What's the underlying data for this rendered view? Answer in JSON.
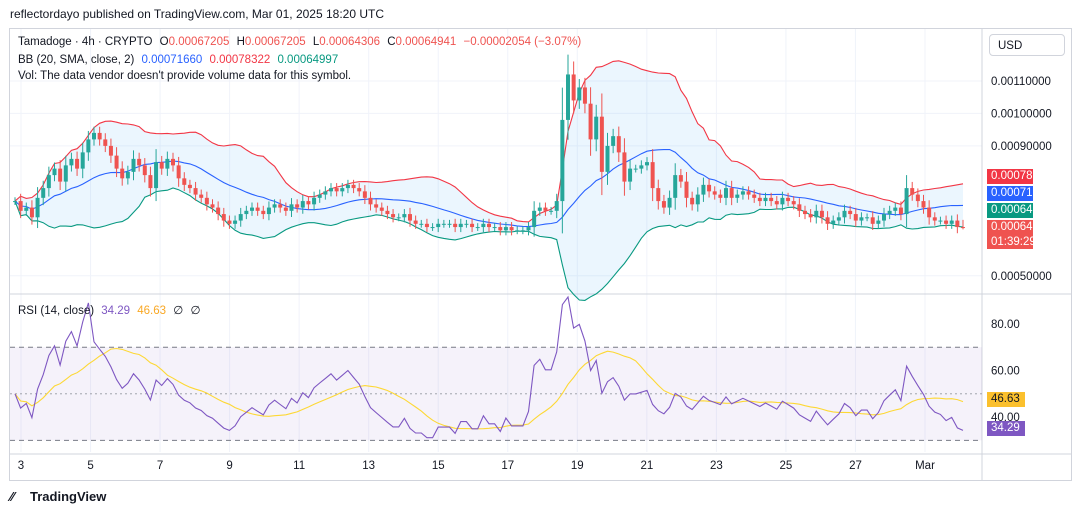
{
  "header": {
    "published": "reflectordayo published on TradingView.com, Mar 01, 2025 18:20 UTC"
  },
  "symbol_legend": {
    "symbol": "Tamadoge · 4h · CRYPTO",
    "o_label": "O",
    "o": "0.00067205",
    "h_label": "H",
    "h": "0.00067205",
    "l_label": "L",
    "l": "0.00064306",
    "c_label": "C",
    "c": "0.00064941",
    "change": "−0.00002054 (−3.07%)"
  },
  "bb_legend": {
    "label": "BB (20, SMA, close, 2)",
    "basis": "0.00071660",
    "upper": "0.00078322",
    "lower": "0.00064997"
  },
  "vol_legend": "Vol: The data vendor doesn't provide volume data for this symbol.",
  "rsi_legend": {
    "label": "RSI (14, close)",
    "rsi": "34.29",
    "ma": "46.63",
    "extra1": "∅",
    "extra2": "∅"
  },
  "currency_button": "USD",
  "price_axis": {
    "ticks": [
      "0.00110000",
      "0.00100000",
      "0.00090000",
      "0.00050000"
    ],
    "badges": {
      "upper": "0.00078322",
      "basis": "0.00071660",
      "lower": "0.00064997",
      "last": "0.00064941",
      "countdown": "01:39:29"
    }
  },
  "rsi_axis": {
    "ticks": [
      "80.00",
      "60.00",
      "40.00"
    ],
    "badge_ma": "46.63",
    "badge_rsi": "34.29"
  },
  "time_axis": [
    "3",
    "5",
    "7",
    "9",
    "11",
    "13",
    "15",
    "17",
    "19",
    "21",
    "23",
    "25",
    "27",
    "Mar"
  ],
  "footer": {
    "brand": "TradingView"
  },
  "colors": {
    "up": "#26a69a",
    "down": "#ef5350",
    "bb_upper": "#f23645",
    "bb_basis": "#2962ff",
    "bb_lower": "#089981",
    "bb_fill": "#2196f3",
    "rsi": "#7e57c2",
    "rsi_ma": "#fdd835"
  },
  "chart_data": [
    {
      "type": "candlestick",
      "title": "Tamadoge · 4h · CRYPTO",
      "ylim": [
        0.00045,
        0.00126
      ],
      "y_ticks": [
        0.0011,
        0.001,
        0.0009,
        0.0005
      ],
      "bb_period": 20,
      "closes": [
        0.00073,
        0.0007,
        0.00071,
        0.00068,
        0.00074,
        0.00077,
        0.00081,
        0.00083,
        0.00079,
        0.00084,
        0.00086,
        0.00083,
        0.00088,
        0.00092,
        0.00094,
        0.00092,
        0.0009,
        0.00087,
        0.00083,
        0.0008,
        0.00082,
        0.00086,
        0.00084,
        0.00081,
        0.00077,
        0.00085,
        0.00083,
        0.00086,
        0.00084,
        0.0008,
        0.00078,
        0.00077,
        0.00075,
        0.00074,
        0.00072,
        0.00071,
        0.00069,
        0.00067,
        0.00066,
        0.00067,
        0.00069,
        0.0007,
        0.00071,
        0.0007,
        0.00069,
        0.00071,
        0.00072,
        0.00071,
        0.0007,
        0.00072,
        0.00071,
        0.00073,
        0.00072,
        0.00074,
        0.00075,
        0.00076,
        0.00077,
        0.00076,
        0.00077,
        0.00078,
        0.00077,
        0.00076,
        0.00074,
        0.00072,
        0.00071,
        0.0007,
        0.00069,
        0.00068,
        0.00068,
        0.00069,
        0.00067,
        0.00066,
        0.00066,
        0.00065,
        0.00065,
        0.00066,
        0.00066,
        0.00066,
        0.00065,
        0.00066,
        0.00066,
        0.00065,
        0.00065,
        0.00066,
        0.00065,
        0.00065,
        0.00064,
        0.00065,
        0.00064,
        0.00064,
        0.00064,
        0.00065,
        0.0007,
        0.00071,
        0.0007,
        0.0007,
        0.00073,
        0.00098,
        0.00112,
        0.00104,
        0.00108,
        0.00103,
        0.00092,
        0.00099,
        0.00082,
        0.0009,
        0.00093,
        0.00088,
        0.00079,
        0.00083,
        0.00083,
        0.00084,
        0.00085,
        0.00077,
        0.00073,
        0.00071,
        0.00074,
        0.00081,
        0.00079,
        0.00074,
        0.00072,
        0.00075,
        0.00078,
        0.00076,
        0.00075,
        0.00074,
        0.00077,
        0.00074,
        0.00075,
        0.00076,
        0.00075,
        0.00074,
        0.00073,
        0.00074,
        0.00073,
        0.00072,
        0.00074,
        0.00073,
        0.00072,
        0.0007,
        0.00069,
        0.00068,
        0.0007,
        0.00068,
        0.00066,
        0.00067,
        0.00068,
        0.0007,
        0.00069,
        0.00067,
        0.00068,
        0.00068,
        0.00066,
        0.00067,
        0.00069,
        0.0007,
        0.00071,
        0.00069,
        0.00077,
        0.00075,
        0.00073,
        0.00071,
        0.00068,
        0.00067,
        0.00067,
        0.00066,
        0.00067,
        0.00065,
        0.00064941
      ],
      "series": [
        {
          "name": "BB upper",
          "last": 0.00078322
        },
        {
          "name": "BB basis",
          "last": 0.0007166
        },
        {
          "name": "BB lower",
          "last": 0.00064997
        }
      ],
      "annotations": {
        "last_price": 0.00064941,
        "countdown": "01:39:29"
      }
    },
    {
      "type": "line",
      "title": "RSI (14, close)",
      "ylim": [
        25,
        92
      ],
      "y_ticks": [
        80,
        60,
        40
      ],
      "band": [
        30,
        70
      ],
      "series": [
        {
          "name": "RSI",
          "last": 34.29
        },
        {
          "name": "RSI MA",
          "last": 46.63
        }
      ]
    }
  ]
}
